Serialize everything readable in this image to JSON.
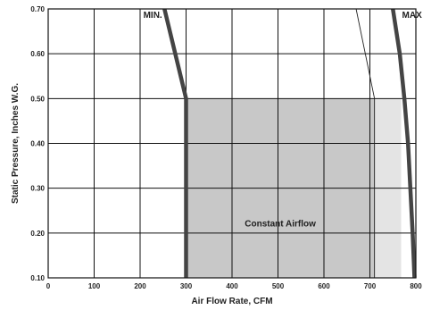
{
  "chart_data": {
    "type": "area",
    "xlabel": "Air Flow Rate, CFM",
    "ylabel": "Static Pressure, Inches W.G.",
    "xlim": [
      0,
      800
    ],
    "ylim": [
      0.1,
      0.7
    ],
    "x_ticks": [
      "0",
      "100",
      "200",
      "300",
      "400",
      "500",
      "600",
      "700",
      "800"
    ],
    "y_ticks": [
      "0.10",
      "0.20",
      "0.30",
      "0.40",
      "0.50",
      "0.60",
      "0.70"
    ],
    "grid": true,
    "series": [
      {
        "name": "MIN.",
        "style": "thick",
        "points": [
          [
            253,
            0.7
          ],
          [
            300,
            0.5
          ],
          [
            300,
            0.1
          ]
        ]
      },
      {
        "name": "MAX",
        "style": "thick",
        "points": [
          [
            750,
            0.7
          ],
          [
            765,
            0.6
          ],
          [
            775,
            0.5
          ],
          [
            783,
            0.4
          ],
          [
            788,
            0.3
          ],
          [
            793,
            0.2
          ],
          [
            797,
            0.1
          ]
        ]
      },
      {
        "name": "",
        "style": "thin",
        "points": [
          [
            670,
            0.7
          ],
          [
            710,
            0.5
          ],
          [
            710,
            0.1
          ]
        ]
      }
    ],
    "regions": [
      {
        "name": "Constant Airflow",
        "color": "#c8c8c8",
        "x": [
          300,
          710
        ],
        "y": [
          0.1,
          0.5
        ]
      },
      {
        "name": "",
        "color": "#e4e4e4",
        "x": [
          710,
          768
        ],
        "y": [
          0.1,
          0.5
        ]
      }
    ],
    "annotations": [
      {
        "text": "MIN.",
        "x": 207,
        "y": 0.68
      },
      {
        "text": "MAX",
        "x": 770,
        "y": 0.68
      },
      {
        "text": "Constant Airflow",
        "x": 505,
        "y": 0.215
      }
    ]
  }
}
